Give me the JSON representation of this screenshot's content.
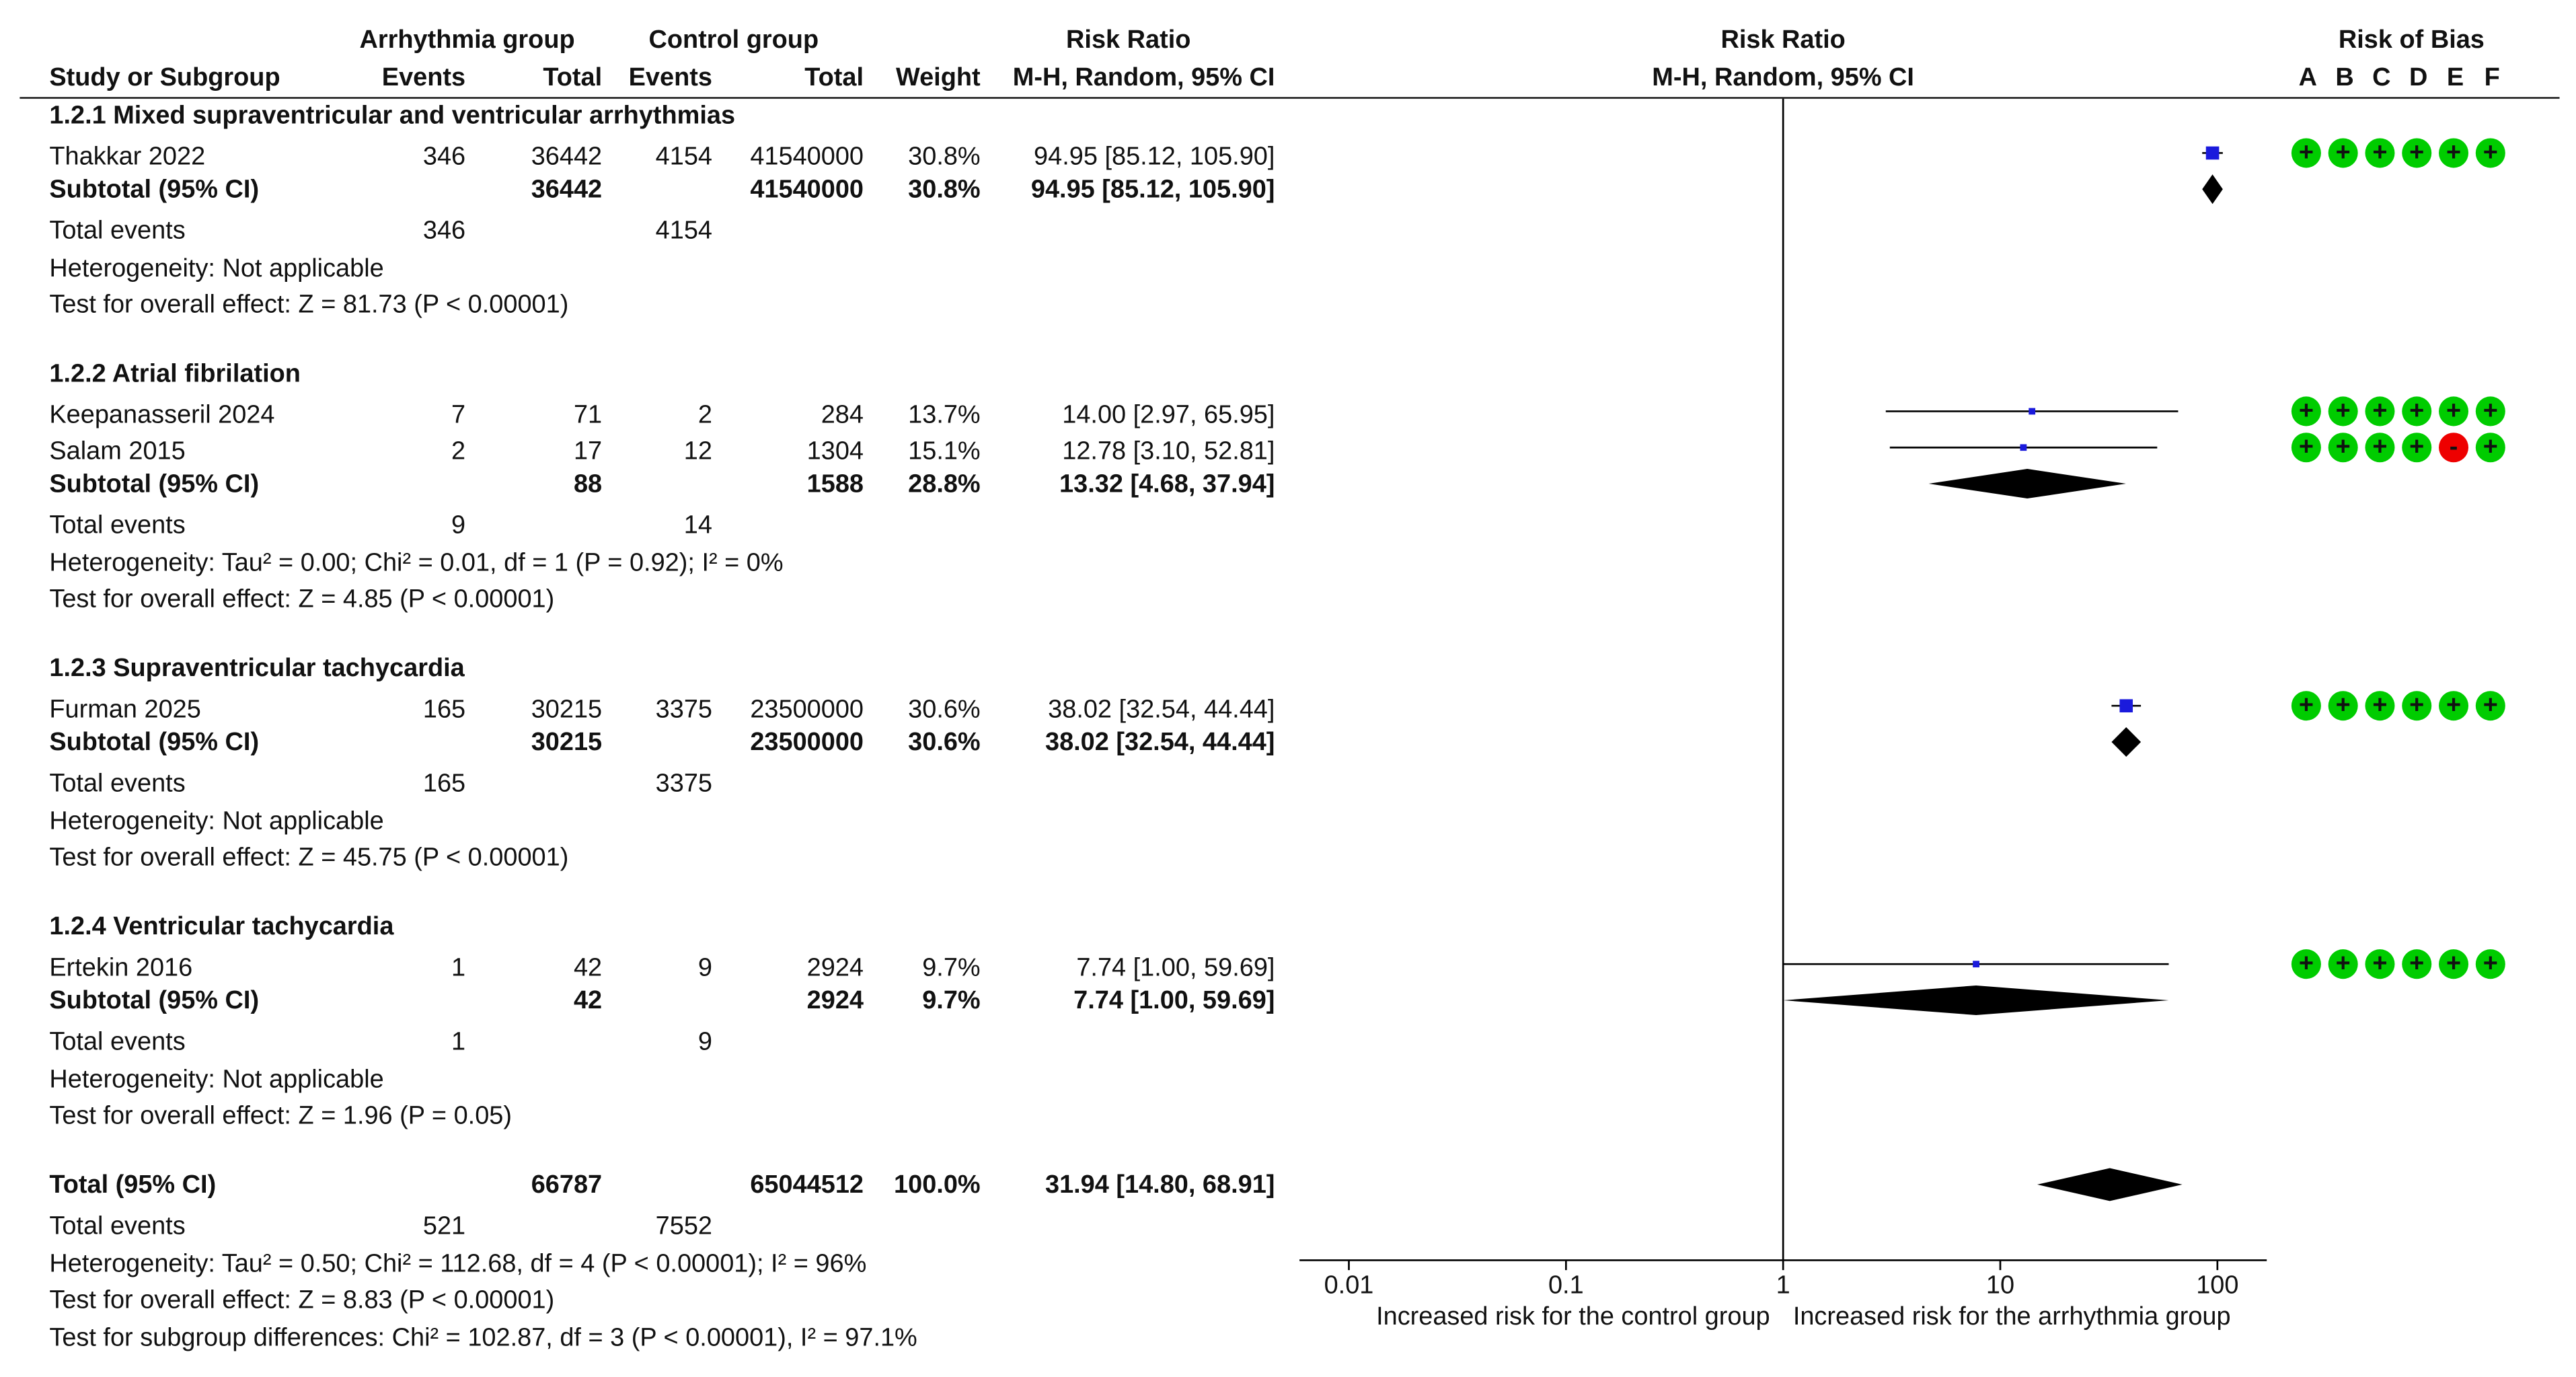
{
  "headers": {
    "arr_group": "Arrhythmia group",
    "ctl_group": "Control group",
    "rr": "Risk Ratio",
    "study": "Study or Subgroup",
    "events": "Events",
    "total": "Total",
    "weight": "Weight",
    "rr_method": "M-H, Random, 95% CI",
    "plot_title": "Risk Ratio",
    "plot_method": "M-H, Random, 95% CI",
    "rob_title": "Risk of Bias",
    "rob_letters": [
      "A",
      "B",
      "C",
      "D",
      "E",
      "F"
    ]
  },
  "groups": [
    {
      "title": "1.2.1 Mixed supraventricular and ventricular arrhythmias",
      "studies": [
        {
          "name": "Thakkar 2022",
          "e1": "346",
          "n1": "36442",
          "e2": "4154",
          "n2": "41540000",
          "w": "30.8%",
          "ci": "94.95 [85.12, 105.90]",
          "rr": 94.95,
          "lo": 85.12,
          "hi": 105.9,
          "weight": 30.8,
          "rob": [
            "+",
            "+",
            "+",
            "+",
            "+",
            "+"
          ]
        }
      ],
      "subtotal": {
        "label": "Subtotal (95% CI)",
        "n1": "36442",
        "n2": "41540000",
        "w": "30.8%",
        "ci": "94.95 [85.12, 105.90]",
        "rr": 94.95,
        "lo": 85.12,
        "hi": 105.9
      },
      "te_label": "Total events",
      "te1": "346",
      "te2": "4154",
      "het": "Heterogeneity: Not applicable",
      "test": "Test for overall effect: Z = 81.73 (P < 0.00001)"
    },
    {
      "title": "1.2.2 Atrial fibrilation",
      "studies": [
        {
          "name": "Keepanasseril 2024",
          "e1": "7",
          "n1": "71",
          "e2": "2",
          "n2": "284",
          "w": "13.7%",
          "ci": "14.00 [2.97, 65.95]",
          "rr": 14.0,
          "lo": 2.97,
          "hi": 65.95,
          "weight": 13.7,
          "rob": [
            "+",
            "+",
            "+",
            "+",
            "+",
            "+"
          ]
        },
        {
          "name": "Salam 2015",
          "e1": "2",
          "n1": "17",
          "e2": "12",
          "n2": "1304",
          "w": "15.1%",
          "ci": "12.78 [3.10, 52.81]",
          "rr": 12.78,
          "lo": 3.1,
          "hi": 52.81,
          "weight": 15.1,
          "rob": [
            "+",
            "+",
            "+",
            "+",
            "-",
            "+"
          ]
        }
      ],
      "subtotal": {
        "label": "Subtotal (95% CI)",
        "n1": "88",
        "n2": "1588",
        "w": "28.8%",
        "ci": "13.32 [4.68, 37.94]",
        "rr": 13.32,
        "lo": 4.68,
        "hi": 37.94
      },
      "te_label": "Total events",
      "te1": "9",
      "te2": "14",
      "het": "Heterogeneity: Tau² = 0.00; Chi² = 0.01, df = 1 (P = 0.92); I² = 0%",
      "test": "Test for overall effect: Z = 4.85 (P < 0.00001)"
    },
    {
      "title": "1.2.3 Supraventricular tachycardia",
      "studies": [
        {
          "name": "Furman 2025",
          "e1": "165",
          "n1": "30215",
          "e2": "3375",
          "n2": "23500000",
          "w": "30.6%",
          "ci": "38.02 [32.54, 44.44]",
          "rr": 38.02,
          "lo": 32.54,
          "hi": 44.44,
          "weight": 30.6,
          "rob": [
            "+",
            "+",
            "+",
            "+",
            "+",
            "+"
          ]
        }
      ],
      "subtotal": {
        "label": "Subtotal (95% CI)",
        "n1": "30215",
        "n2": "23500000",
        "w": "30.6%",
        "ci": "38.02 [32.54, 44.44]",
        "rr": 38.02,
        "lo": 32.54,
        "hi": 44.44
      },
      "te_label": "Total events",
      "te1": "165",
      "te2": "3375",
      "het": "Heterogeneity: Not applicable",
      "test": "Test for overall effect: Z = 45.75 (P < 0.00001)"
    },
    {
      "title": "1.2.4 Ventricular tachycardia",
      "studies": [
        {
          "name": "Ertekin 2016",
          "e1": "1",
          "n1": "42",
          "e2": "9",
          "n2": "2924",
          "w": "9.7%",
          "ci": "7.74 [1.00, 59.69]",
          "rr": 7.74,
          "lo": 1.0,
          "hi": 59.69,
          "weight": 9.7,
          "rob": [
            "+",
            "+",
            "+",
            "+",
            "+",
            "+"
          ]
        }
      ],
      "subtotal": {
        "label": "Subtotal (95% CI)",
        "n1": "42",
        "n2": "2924",
        "w": "9.7%",
        "ci": "7.74 [1.00, 59.69]",
        "rr": 7.74,
        "lo": 1.0,
        "hi": 59.69
      },
      "te_label": "Total events",
      "te1": "1",
      "te2": "9",
      "het": "Heterogeneity: Not applicable",
      "test": "Test for overall effect: Z = 1.96 (P = 0.05)"
    }
  ],
  "total": {
    "label": "Total (95% CI)",
    "n1": "66787",
    "n2": "65044512",
    "w": "100.0%",
    "ci": "31.94 [14.80, 68.91]",
    "rr": 31.94,
    "lo": 14.8,
    "hi": 68.91,
    "te_label": "Total events",
    "te1": "521",
    "te2": "7552",
    "het": "Heterogeneity: Tau² = 0.50; Chi² = 112.68, df = 4 (P < 0.00001); I² = 96%",
    "test": "Test for overall effect: Z = 8.83 (P < 0.00001)",
    "subgroup": "Test for subgroup differences: Chi² = 102.87, df = 3 (P < 0.00001), I² = 97.1%"
  },
  "chart_data": {
    "type": "forest",
    "x_scale": "log",
    "xlim": [
      0.01,
      100
    ],
    "ticks": [
      0.01,
      0.1,
      1,
      10,
      100
    ],
    "tick_labels": [
      "0.01",
      "0.1",
      "1",
      "10",
      "100"
    ],
    "null_value": 1,
    "favours_left": "Increased risk for the control group",
    "favours_right": "Increased risk for the arrhythmia group",
    "colors": {
      "study_marker": "#1a1adc",
      "diamond": "#000000",
      "rob_low": "#00cc00",
      "rob_high": "#ee0000"
    }
  }
}
